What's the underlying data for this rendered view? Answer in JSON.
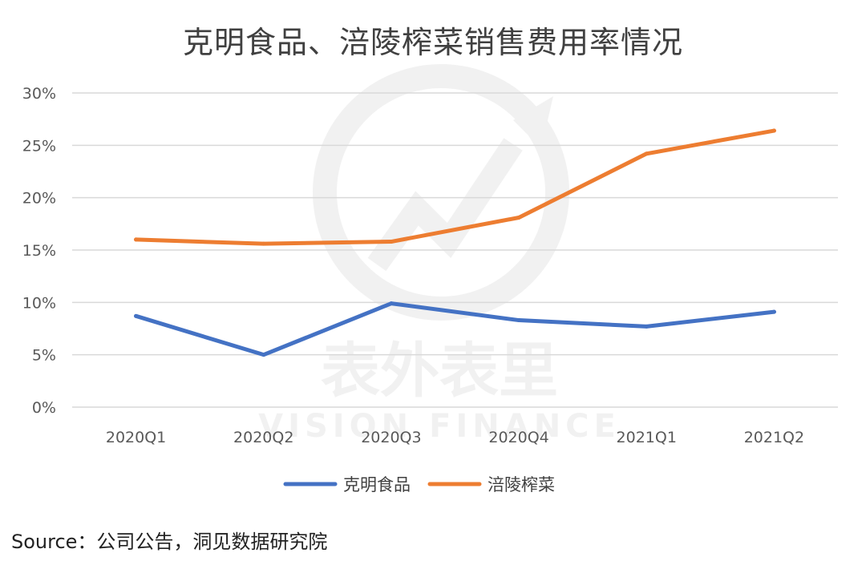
{
  "chart_data": {
    "type": "line",
    "title": "克明食品、涪陵榨菜销售费用率情况",
    "categories": [
      "2020Q1",
      "2020Q2",
      "2020Q3",
      "2020Q4",
      "2021Q1",
      "2021Q2"
    ],
    "series": [
      {
        "name": "克明食品",
        "color": "#4472C4",
        "values": [
          8.7,
          5.0,
          9.9,
          8.3,
          7.7,
          9.1
        ]
      },
      {
        "name": "涪陵榨菜",
        "color": "#ED7D31",
        "values": [
          16.0,
          15.6,
          15.8,
          18.1,
          24.2,
          26.4
        ]
      }
    ],
    "yticks": [
      "0%",
      "5%",
      "10%",
      "15%",
      "20%",
      "25%",
      "30%"
    ],
    "ylim": [
      0,
      30
    ],
    "unit": "%",
    "grid": true,
    "legend_position": "bottom"
  },
  "watermark": {
    "text_cn": "表外表里",
    "text_en": "VISION FINANCE"
  },
  "source": "Source：公司公告，洞见数据研究院"
}
